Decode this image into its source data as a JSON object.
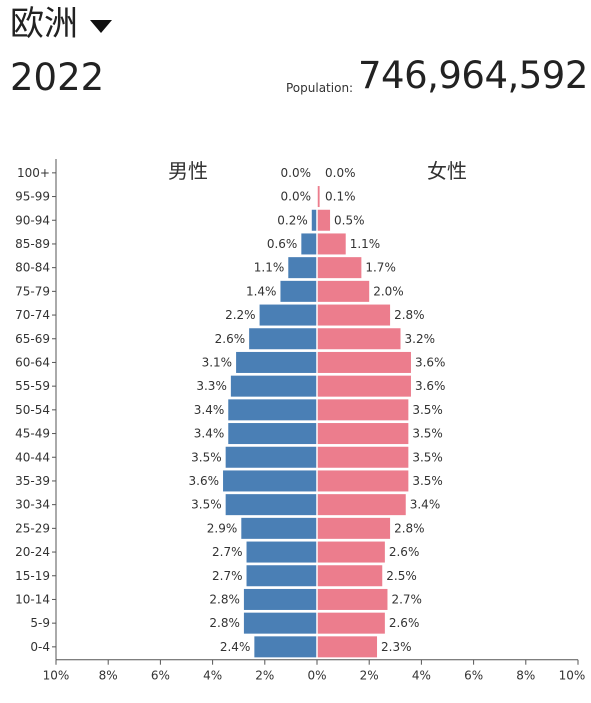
{
  "header": {
    "region": "欧洲",
    "year": "2022",
    "population_label": "Population:",
    "population_value": "746,964,592"
  },
  "chart_data": {
    "type": "bar",
    "orientation": "horizontal-population-pyramid",
    "categories": [
      "100+",
      "95-99",
      "90-94",
      "85-89",
      "80-84",
      "75-79",
      "70-74",
      "65-69",
      "60-64",
      "55-59",
      "50-54",
      "45-49",
      "40-44",
      "35-39",
      "30-34",
      "25-29",
      "20-24",
      "15-19",
      "10-14",
      "5-9",
      "0-4"
    ],
    "series": [
      {
        "name": "男性",
        "color": "#4a7fb5",
        "values": [
          0.0,
          0.0,
          0.2,
          0.6,
          1.1,
          1.4,
          2.2,
          2.6,
          3.1,
          3.3,
          3.4,
          3.4,
          3.5,
          3.6,
          3.5,
          2.9,
          2.7,
          2.7,
          2.8,
          2.8,
          2.4
        ],
        "labels": [
          "0.0%",
          "0.0%",
          "0.2%",
          "0.6%",
          "1.1%",
          "1.4%",
          "2.2%",
          "2.6%",
          "3.1%",
          "3.3%",
          "3.4%",
          "3.4%",
          "3.5%",
          "3.6%",
          "3.5%",
          "2.9%",
          "2.7%",
          "2.7%",
          "2.8%",
          "2.8%",
          "2.4%"
        ]
      },
      {
        "name": "女性",
        "color": "#ec7d8d",
        "values": [
          0.0,
          0.1,
          0.5,
          1.1,
          1.7,
          2.0,
          2.8,
          3.2,
          3.6,
          3.6,
          3.5,
          3.5,
          3.5,
          3.5,
          3.4,
          2.8,
          2.6,
          2.5,
          2.7,
          2.6,
          2.3
        ],
        "labels": [
          "0.0%",
          "0.1%",
          "0.5%",
          "1.1%",
          "1.7%",
          "2.0%",
          "2.8%",
          "3.2%",
          "3.6%",
          "3.6%",
          "3.5%",
          "3.5%",
          "3.5%",
          "3.5%",
          "3.4%",
          "2.8%",
          "2.6%",
          "2.5%",
          "2.7%",
          "2.6%",
          "2.3%"
        ]
      }
    ],
    "xlim": [
      -10,
      10
    ],
    "xticks": [
      "10%",
      "8%",
      "6%",
      "4%",
      "2%",
      "0%",
      "2%",
      "4%",
      "6%",
      "8%",
      "10%"
    ],
    "grid": false
  }
}
